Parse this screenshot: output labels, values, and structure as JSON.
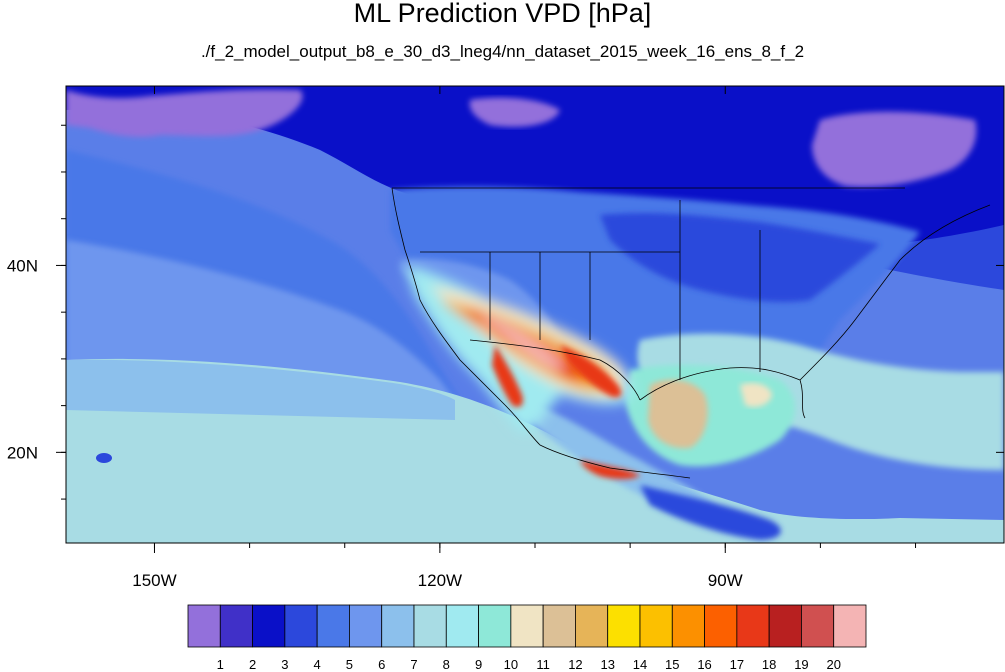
{
  "title": "ML Prediction VPD [hPa]",
  "subtitle": "./f_2_model_output_b8_e_30_d3_lneg4/nn_dataset_2015_week_16_ens_8_f_2",
  "map": {
    "lon_ticks": [
      {
        "value": -150,
        "label": "150W"
      },
      {
        "value": -120,
        "label": "120W"
      },
      {
        "value": -90,
        "label": "90W"
      }
    ],
    "lat_ticks": [
      {
        "value": 40,
        "label": "40N"
      },
      {
        "value": 20,
        "label": "20N"
      }
    ],
    "lon_range": [
      -159.3,
      -60.7
    ],
    "lat_range": [
      10.3,
      59.2
    ],
    "background": "#5a7ee8"
  },
  "colorbar": {
    "colors": [
      "#9370db",
      "#4030c8",
      "#0a10c8",
      "#2c48dc",
      "#4a78e8",
      "#6e96ee",
      "#8cc0ec",
      "#a8dce4",
      "#a0eaf0",
      "#8ee8d8",
      "#f0e4c4",
      "#dcc096",
      "#e6b458",
      "#fce000",
      "#fcc000",
      "#fc9000",
      "#fc6000",
      "#e83818",
      "#b82020",
      "#d05050",
      "#f4b4b4"
    ],
    "labels": [
      "1",
      "2",
      "3",
      "4",
      "5",
      "6",
      "7",
      "8",
      "9",
      "10",
      "11",
      "12",
      "13",
      "14",
      "15",
      "16",
      "17",
      "18",
      "19",
      "20"
    ]
  }
}
